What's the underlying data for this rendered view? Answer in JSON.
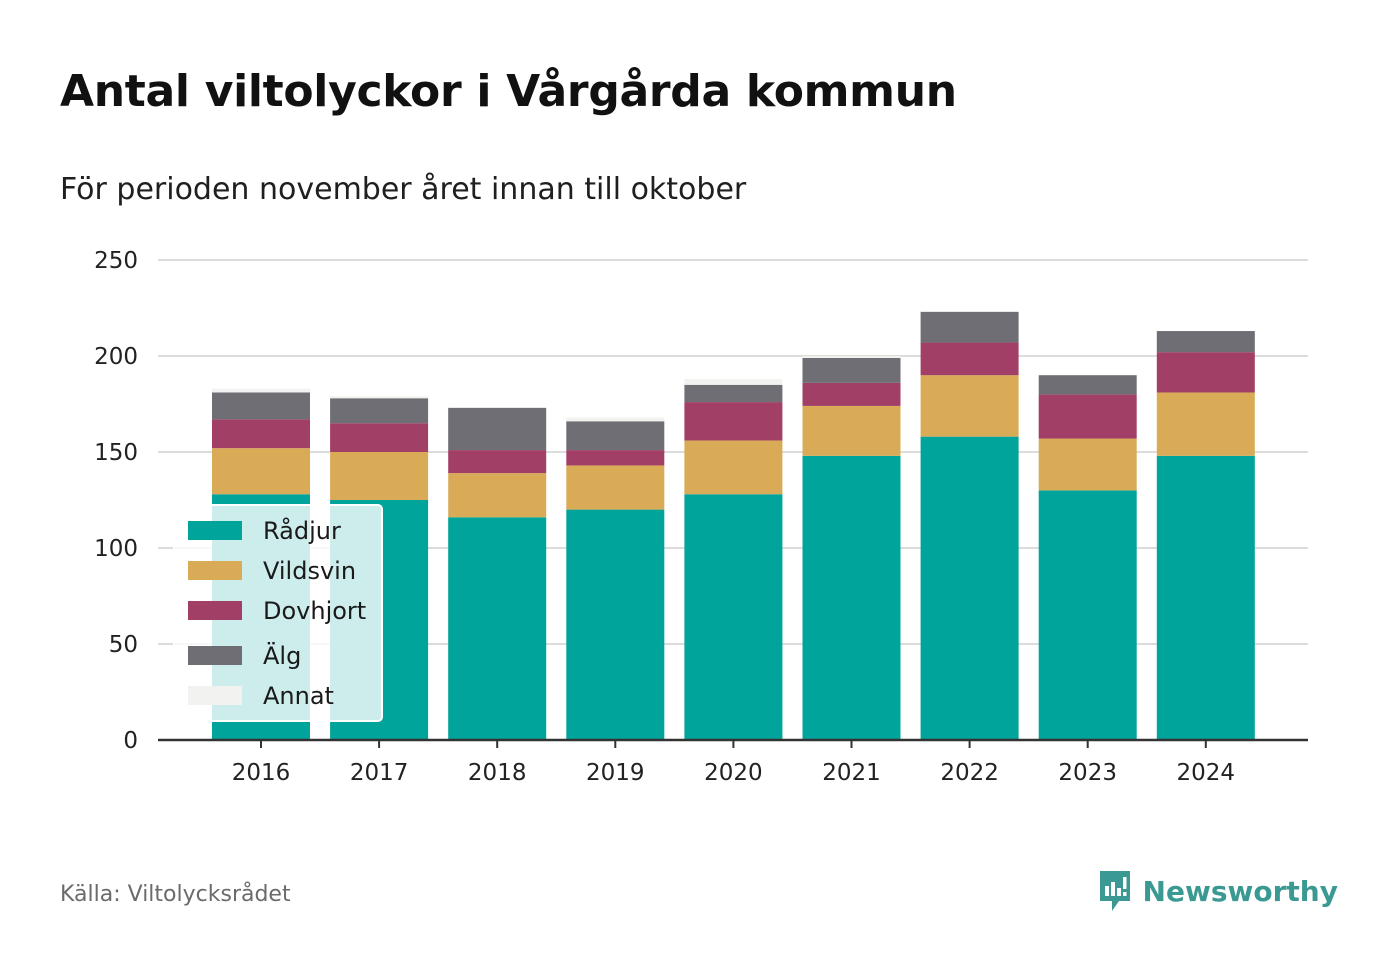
{
  "header": {
    "title": "Antal viltolyckor i Vårgårda kommun",
    "subtitle": "För perioden november året innan till oktober"
  },
  "footer": {
    "source": "Källa: Viltolycksrådet",
    "brand": "Newsworthy",
    "brand_icon": "newsworthy-logo-icon",
    "brand_color": "#3a9a93"
  },
  "chart_data": {
    "type": "bar",
    "stacked": true,
    "categories": [
      "2016",
      "2017",
      "2018",
      "2019",
      "2020",
      "2021",
      "2022",
      "2023",
      "2024"
    ],
    "series": [
      {
        "name": "Rådjur",
        "color": "#00a49a",
        "values": [
          128,
          125,
          116,
          120,
          128,
          148,
          158,
          130,
          148
        ]
      },
      {
        "name": "Vildsvin",
        "color": "#d9ab57",
        "values": [
          24,
          25,
          23,
          23,
          28,
          26,
          32,
          27,
          33
        ]
      },
      {
        "name": "Dovhjort",
        "color": "#a23f66",
        "values": [
          15,
          15,
          12,
          8,
          20,
          12,
          17,
          23,
          21
        ]
      },
      {
        "name": "Älg",
        "color": "#6e6e74",
        "values": [
          14,
          13,
          22,
          15,
          9,
          13,
          16,
          10,
          11
        ]
      },
      {
        "name": "Annat",
        "color": "#f2f2f0",
        "values": [
          2,
          1,
          0,
          2,
          3,
          1,
          0,
          0,
          0
        ]
      }
    ],
    "ylim": [
      0,
      250
    ],
    "yticks": [
      0,
      50,
      100,
      150,
      200,
      250
    ],
    "xlabel": "",
    "ylabel": "",
    "grid": true,
    "legend_placement": "bottom-left"
  }
}
